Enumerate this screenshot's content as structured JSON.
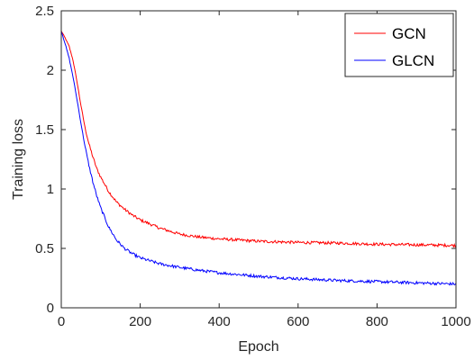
{
  "chart_data": {
    "type": "line",
    "xlabel": "Epoch",
    "ylabel": "Training loss",
    "xlim": [
      0,
      1000
    ],
    "ylim": [
      0,
      2.5
    ],
    "xticks": [
      0,
      200,
      400,
      600,
      800,
      1000
    ],
    "yticks": [
      0,
      0.5,
      1,
      1.5,
      2,
      2.5
    ],
    "xtick_labels": [
      "0",
      "200",
      "400",
      "600",
      "800",
      "1000"
    ],
    "ytick_labels": [
      "0",
      "0.5",
      "1",
      "1.5",
      "2",
      "2.5"
    ],
    "grid": false,
    "legend_position": "top-right",
    "series": [
      {
        "name": "GCN",
        "color": "#ff0000",
        "x": [
          0,
          10,
          20,
          30,
          40,
          50,
          60,
          70,
          80,
          90,
          100,
          120,
          140,
          160,
          180,
          200,
          250,
          300,
          350,
          400,
          450,
          500,
          600,
          700,
          800,
          900,
          1000
        ],
        "y": [
          2.33,
          2.27,
          2.2,
          2.08,
          1.9,
          1.7,
          1.52,
          1.38,
          1.27,
          1.17,
          1.1,
          0.98,
          0.89,
          0.83,
          0.78,
          0.74,
          0.67,
          0.62,
          0.595,
          0.58,
          0.57,
          0.56,
          0.55,
          0.545,
          0.535,
          0.53,
          0.525
        ]
      },
      {
        "name": "GLCN",
        "color": "#0000ff",
        "x": [
          0,
          10,
          20,
          30,
          40,
          50,
          60,
          70,
          80,
          90,
          100,
          120,
          140,
          160,
          180,
          200,
          250,
          300,
          350,
          400,
          450,
          500,
          600,
          700,
          800,
          900,
          1000
        ],
        "y": [
          2.33,
          2.22,
          2.1,
          1.94,
          1.75,
          1.55,
          1.36,
          1.2,
          1.06,
          0.94,
          0.84,
          0.68,
          0.57,
          0.5,
          0.455,
          0.42,
          0.37,
          0.34,
          0.315,
          0.295,
          0.28,
          0.265,
          0.245,
          0.23,
          0.22,
          0.21,
          0.2
        ]
      }
    ]
  }
}
